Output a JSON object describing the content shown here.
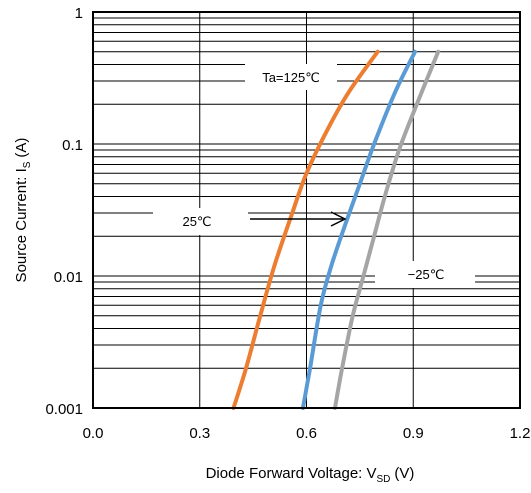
{
  "chart_data": {
    "type": "line",
    "title": "",
    "xlabel": "Diode Forward Voltage: V",
    "xlabel_sub": "SD",
    "xlabel_unit": "(V)",
    "ylabel": "Source Current: I",
    "ylabel_sub": "S",
    "ylabel_unit": "(A)",
    "xlim": [
      0.0,
      1.2
    ],
    "ylim": [
      0.001,
      1
    ],
    "yscale": "log",
    "x_ticks": [
      0.0,
      0.3,
      0.6,
      0.9,
      1.2
    ],
    "x_tick_labels": [
      "0.0",
      "0.3",
      "0.6",
      "0.9",
      "1.2"
    ],
    "y_ticks": [
      0.001,
      0.01,
      0.1,
      1
    ],
    "y_tick_labels": [
      "0.001",
      "0.01",
      "0.1",
      "1"
    ],
    "grid": true,
    "legend": "none",
    "series": [
      {
        "label": "Ta=125℃",
        "color": "#ED7D31",
        "points": [
          [
            0.395,
            0.001
          ],
          [
            0.43,
            0.002
          ],
          [
            0.47,
            0.005
          ],
          [
            0.51,
            0.012
          ],
          [
            0.56,
            0.03
          ],
          [
            0.6,
            0.06
          ],
          [
            0.66,
            0.13
          ],
          [
            0.72,
            0.25
          ],
          [
            0.8,
            0.5
          ]
        ]
      },
      {
        "label": "25℃",
        "color": "#5B9BD5",
        "points": [
          [
            0.59,
            0.001
          ],
          [
            0.61,
            0.002
          ],
          [
            0.64,
            0.006
          ],
          [
            0.67,
            0.012
          ],
          [
            0.71,
            0.025
          ],
          [
            0.75,
            0.05
          ],
          [
            0.79,
            0.1
          ],
          [
            0.85,
            0.25
          ],
          [
            0.905,
            0.5
          ]
        ]
      },
      {
        "label": "-25℃",
        "color": "#A5A5A5",
        "points": [
          [
            0.68,
            0.001
          ],
          [
            0.7,
            0.002
          ],
          [
            0.73,
            0.005
          ],
          [
            0.76,
            0.01
          ],
          [
            0.79,
            0.02
          ],
          [
            0.82,
            0.04
          ],
          [
            0.86,
            0.09
          ],
          [
            0.91,
            0.2
          ],
          [
            0.97,
            0.5
          ]
        ]
      }
    ],
    "annotations": [
      {
        "text": "Ta=125℃"
      },
      {
        "text": "25℃"
      },
      {
        "text": "−25℃"
      }
    ]
  }
}
